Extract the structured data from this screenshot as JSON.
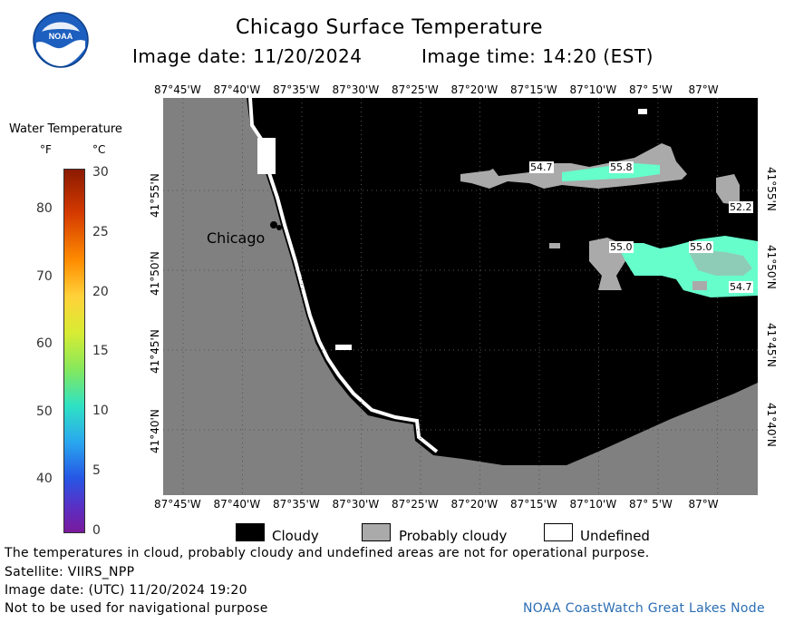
{
  "header": {
    "title": "Chicago Surface Temperature",
    "image_date": "Image date: 11/20/2024",
    "image_time": "Image time: 14:20 (EST)"
  },
  "logo": {
    "text": "NOAA"
  },
  "legend": {
    "title": "Water Temperature",
    "unit_f": "°F",
    "unit_c": "°C",
    "f_ticks": [
      "80",
      "70",
      "60",
      "50",
      "40"
    ],
    "c_ticks": [
      "30",
      "25",
      "20",
      "15",
      "10",
      "5",
      "0"
    ]
  },
  "map": {
    "city_label": "Chicago",
    "lon_labels": [
      "87°45'W",
      "87°40'W",
      "87°35'W",
      "87°30'W",
      "87°25'W",
      "87°20'W",
      "87°15'W",
      "87°10'W",
      "87° 5'W",
      "87°W"
    ],
    "lat_labels": [
      "41°55'N",
      "41°50'N",
      "41°45'N",
      "41°40'N"
    ],
    "temp_labels": [
      "54.7",
      "55.8",
      "52.2",
      "55.0",
      "55.0",
      "54.7"
    ],
    "colors": {
      "land": "#808080",
      "cloudy": "#000000",
      "probably_cloudy": "#aaaaaa",
      "water_55": "#66ffcc"
    }
  },
  "key": {
    "cloudy": "Cloudy",
    "probably_cloudy": "Probably cloudy",
    "undefined": "Undefined"
  },
  "footer": {
    "disclaimer": "The temperatures in cloud, probably cloudy and undefined areas are not for operational purpose.",
    "satellite": "Satellite: VIIRS_NPP",
    "utc_date": "Image date: (UTC) 11/20/2024  19:20",
    "nav_warning": "Not to be used for navigational purpose",
    "credit": "NOAA CoastWatch Great Lakes Node"
  }
}
